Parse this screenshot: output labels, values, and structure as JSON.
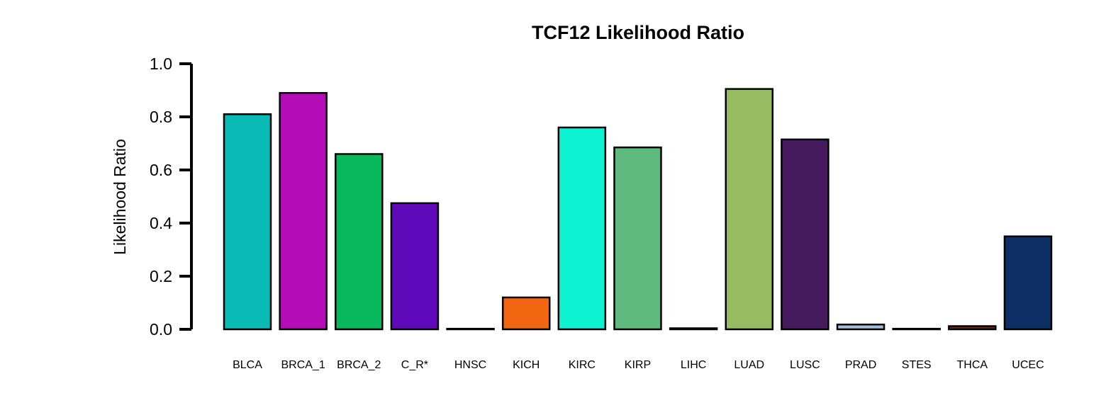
{
  "chart_data": {
    "type": "bar",
    "title": "TCF12 Likelihood Ratio",
    "xlabel": "",
    "ylabel": "Likelihood Ratio",
    "ylim": [
      0,
      1.0
    ],
    "yticks": [
      "0.0",
      "0.2",
      "0.4",
      "0.6",
      "0.8",
      "1.0"
    ],
    "grid": false,
    "categories": [
      "BLCA",
      "BRCA_1",
      "BRCA_2",
      "C_R*",
      "HNSC",
      "KICH",
      "KIRC",
      "KIRP",
      "LIHC",
      "LUAD",
      "LUSC",
      "PRAD",
      "STES",
      "THCA",
      "UCEC"
    ],
    "values": [
      0.81,
      0.89,
      0.66,
      0.475,
      0.0,
      0.12,
      0.76,
      0.685,
      0.004,
      0.905,
      0.715,
      0.018,
      0.0,
      0.012,
      0.35
    ],
    "colors": [
      "#0ABAB5",
      "#B40DB8",
      "#08B85A",
      "#5E0ABA",
      "#000000",
      "#F26611",
      "#0DF2D0",
      "#5FBA80",
      "#333333",
      "#98BC62",
      "#461B5E",
      "#A5BFD6",
      "#333333",
      "#6B2A16",
      "#0E2F66"
    ]
  }
}
